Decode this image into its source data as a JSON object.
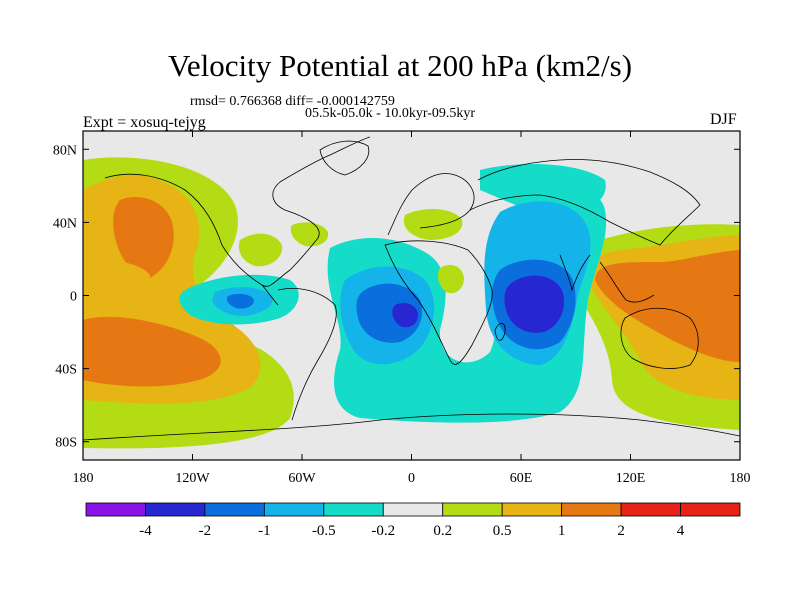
{
  "header": {
    "title": "Velocity Potential at 200 hPa (km2/s)",
    "stats": "rmsd= 0.766368 diff= -0.000142759",
    "period": "05.5k-05.0k - 10.0kyr-09.5kyr",
    "experiment": "Expt = xosuq-tejyg",
    "season": "DJF"
  },
  "map": {
    "x_ticks": [
      "180",
      "120W",
      "60W",
      "0",
      "60E",
      "120E",
      "180"
    ],
    "y_ticks": [
      "80N",
      "40N",
      "0",
      "40S",
      "80S"
    ],
    "lon_range": [
      -180,
      180
    ],
    "lat_range": [
      -90,
      90
    ],
    "background_color": "#e8e8e8",
    "coast_color": "#000000"
  },
  "colorbar": {
    "labels": [
      "-4",
      "-2",
      "-1",
      "-0.5",
      "-0.2",
      "0.2",
      "0.5",
      "1",
      "2",
      "4"
    ],
    "colors": [
      "#8a14e6",
      "#2727d2",
      "#0a6fdc",
      "#14b4eb",
      "#14dcc8",
      "#e8e8e8",
      "#b4dc14",
      "#e6b414",
      "#e67814",
      "#e62314"
    ]
  },
  "chart_data": {
    "type": "contour_map",
    "variable": "Velocity Potential at 200 hPa",
    "units": "km2/s",
    "levels": [
      -4,
      -2,
      -1,
      -0.5,
      -0.2,
      0.2,
      0.5,
      1,
      2,
      4
    ],
    "features": [
      {
        "name": "pacific-east-positive",
        "lon": -150,
        "lat": 5,
        "max_level": 2
      },
      {
        "name": "south-pacific-positive",
        "lon": -155,
        "lat": -28,
        "max_level": 2
      },
      {
        "name": "north-america-positive",
        "lon": -130,
        "lat": 42,
        "max_level": 2
      },
      {
        "name": "tropical-atlantic-negative",
        "lon": -5,
        "lat": -5,
        "min_level": -2
      },
      {
        "name": "indian-ocean-negative",
        "lon": 62,
        "lat": -8,
        "min_level": -2
      },
      {
        "name": "south-america-negative",
        "lon": -95,
        "lat": -2,
        "min_level": -1
      },
      {
        "name": "west-pacific-positive",
        "lon": 125,
        "lat": 10,
        "max_level": 2
      },
      {
        "name": "southeast-pacific-positive",
        "lon": 160,
        "lat": -15,
        "max_level": 2
      }
    ]
  }
}
